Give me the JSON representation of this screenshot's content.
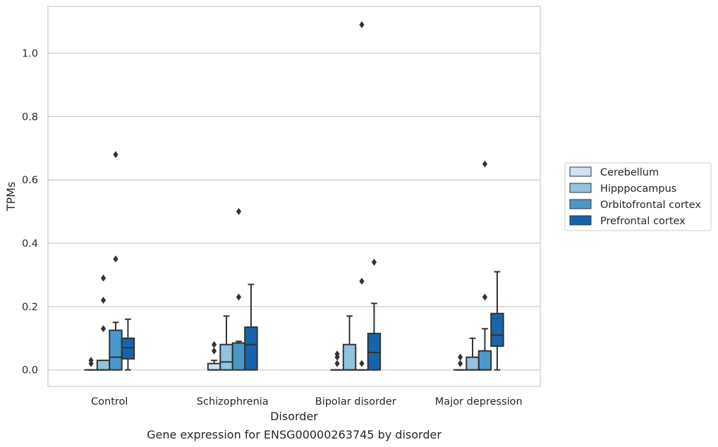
{
  "chart_data": {
    "type": "box",
    "title": "",
    "caption": "Gene expression for ENSG00000263745 by disorder",
    "xlabel": "Disorder",
    "ylabel": "TPMs",
    "ylim": [
      -0.052,
      1.148
    ],
    "yticks": [
      0.0,
      0.2,
      0.4,
      0.6,
      0.8,
      1.0
    ],
    "ytick_labels": [
      "0.0",
      "0.2",
      "0.4",
      "0.6",
      "0.8",
      "1.0"
    ],
    "grid": "horizontal",
    "legend_position": "right",
    "categories": [
      "Control",
      "Schizophrenia",
      "Bipolar disorder",
      "Major depression"
    ],
    "series": [
      {
        "name": "Cerebellum",
        "color": "#cfe1f2",
        "boxes": [
          {
            "min": 0,
            "q1": 0,
            "median": 0,
            "q3": 0,
            "max": 0,
            "outliers": [
              0.02,
              0.03
            ]
          },
          {
            "min": 0,
            "q1": 0,
            "median": 0,
            "q3": 0.02,
            "max": 0.03,
            "outliers": [
              0.06,
              0.08
            ]
          },
          {
            "min": 0,
            "q1": 0,
            "median": 0,
            "q3": 0,
            "max": 0,
            "outliers": [
              0.02,
              0.04,
              0.05
            ]
          },
          {
            "min": 0,
            "q1": 0,
            "median": 0,
            "q3": 0,
            "max": 0,
            "outliers": [
              0.02,
              0.04
            ]
          }
        ]
      },
      {
        "name": "Hipppocampus",
        "color": "#93c4de",
        "boxes": [
          {
            "min": 0,
            "q1": 0,
            "median": 0,
            "q3": 0.03,
            "max": 0.03,
            "outliers": [
              0.13,
              0.22,
              0.29
            ]
          },
          {
            "min": 0,
            "q1": 0,
            "median": 0.025,
            "q3": 0.08,
            "max": 0.17,
            "outliers": []
          },
          {
            "min": 0,
            "q1": 0,
            "median": 0,
            "q3": 0.08,
            "max": 0.17,
            "outliers": []
          },
          {
            "min": 0,
            "q1": 0,
            "median": 0,
            "q3": 0.04,
            "max": 0.1,
            "outliers": []
          }
        ]
      },
      {
        "name": "Orbitofrontal cortex",
        "color": "#4a98c9",
        "boxes": [
          {
            "min": 0,
            "q1": 0,
            "median": 0.04,
            "q3": 0.125,
            "max": 0.15,
            "outliers": [
              0.35,
              0.68
            ]
          },
          {
            "min": 0,
            "q1": 0,
            "median": 0.085,
            "q3": 0.085,
            "max": 0.09,
            "outliers": [
              0.23,
              0.5
            ]
          },
          {
            "min": 0,
            "q1": 0,
            "median": 0,
            "q3": 0,
            "max": 0,
            "outliers": [
              0.02,
              0.28,
              1.09
            ]
          },
          {
            "min": 0,
            "q1": 0,
            "median": 0,
            "q3": 0.06,
            "max": 0.13,
            "outliers": [
              0.23,
              0.65
            ]
          }
        ]
      },
      {
        "name": "Prefrontal cortex",
        "color": "#1764ab",
        "boxes": [
          {
            "min": 0,
            "q1": 0.035,
            "median": 0.07,
            "q3": 0.1,
            "max": 0.16,
            "outliers": []
          },
          {
            "min": 0,
            "q1": 0,
            "median": 0.08,
            "q3": 0.135,
            "max": 0.27,
            "outliers": []
          },
          {
            "min": 0,
            "q1": 0,
            "median": 0.055,
            "q3": 0.115,
            "max": 0.21,
            "outliers": [
              0.34
            ]
          },
          {
            "min": 0,
            "q1": 0.075,
            "median": 0.11,
            "q3": 0.178,
            "max": 0.31,
            "outliers": []
          }
        ]
      }
    ]
  }
}
